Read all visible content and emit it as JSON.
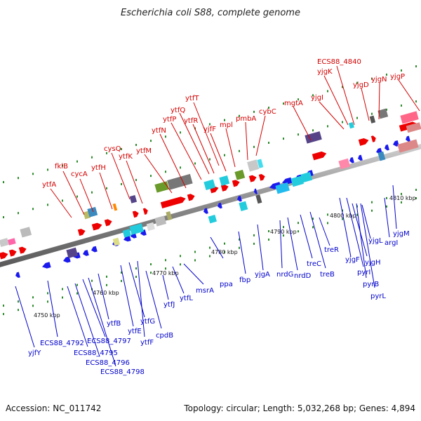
{
  "title": "Escherichia coli S88, complete genome",
  "footer": {
    "accession": "Accession: NC_011742",
    "summary": "Topology: circular; Length: 5,032,268 bp; Genes: 4,894"
  },
  "colors": {
    "forward": "#ee0000",
    "reverse": "#1a1aee",
    "forward_label": "#d40000",
    "reverse_label": "#0000cc",
    "backbone": "#8a8a8a",
    "tick": "#2a8a2a"
  },
  "scale_labels": [
    "4750 kbp",
    "4760 kbp",
    "4770 kbp",
    "4780 kbp",
    "4790 kbp",
    "4800 kbp",
    "4810 kbp"
  ],
  "forward_genes": [
    "ytfA",
    "fklB",
    "cycA",
    "ytfH",
    "cysQ",
    "ytfK",
    "ytfM",
    "ytfN",
    "ytfP",
    "ytfQ",
    "ytfR",
    "ytfT",
    "yjfF",
    "mpl",
    "pmbA",
    "cybC",
    "mgtA",
    "yjgI",
    "yjgK",
    "ECS88_4840",
    "yjgD",
    "yjgN",
    "yjgP"
  ],
  "reverse_genes": [
    "yjfY",
    "ECS88_4792",
    "ECS88_4795",
    "ECS88_4797",
    "ECS88_4796",
    "ECS88_4798",
    "ytfB",
    "ytfE",
    "ytfG",
    "ytfF",
    "cpdB",
    "ytfJ",
    "ytfL",
    "msrA",
    "ppa",
    "fbp",
    "yjgA",
    "nrdG",
    "nrdD",
    "treC",
    "treB",
    "treR",
    "yjgF",
    "pyrI",
    "yjgH",
    "pyrB",
    "pyrL",
    "yjgL",
    "argI",
    "yjgM"
  ]
}
